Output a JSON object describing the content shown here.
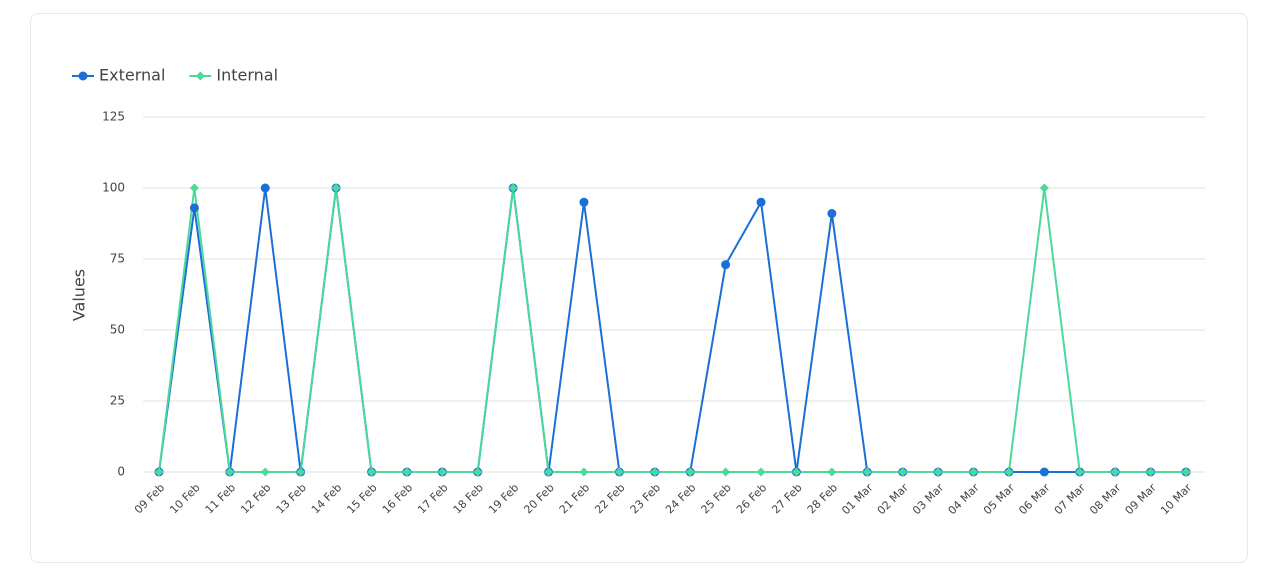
{
  "chart_data": {
    "type": "line",
    "y_label": "Values",
    "categories": [
      "09 Feb",
      "10 Feb",
      "11 Feb",
      "12 Feb",
      "13 Feb",
      "14 Feb",
      "15 Feb",
      "16 Feb",
      "17 Feb",
      "18 Feb",
      "19 Feb",
      "20 Feb",
      "21 Feb",
      "22 Feb",
      "23 Feb",
      "24 Feb",
      "25 Feb",
      "26 Feb",
      "27 Feb",
      "28 Feb",
      "01 Mar",
      "02 Mar",
      "03 Mar",
      "04 Mar",
      "05 Mar",
      "06 Mar",
      "07 Mar",
      "08 Mar",
      "09 Mar",
      "10 Mar"
    ],
    "series": [
      {
        "name": "External",
        "color": "#1a6fd8",
        "marker": "circle",
        "values": [
          0,
          93,
          0,
          100,
          0,
          100,
          0,
          0,
          0,
          0,
          100,
          0,
          95,
          0,
          0,
          0,
          73,
          95,
          0,
          91,
          0,
          0,
          0,
          0,
          0,
          0,
          0,
          0,
          0,
          0
        ]
      },
      {
        "name": "Internal",
        "color": "#4cd99a",
        "marker": "diamond",
        "values": [
          0,
          100,
          0,
          0,
          0,
          100,
          0,
          0,
          0,
          0,
          100,
          0,
          0,
          0,
          0,
          0,
          0,
          0,
          0,
          0,
          0,
          0,
          0,
          0,
          0,
          100,
          0,
          0,
          0,
          0
        ]
      }
    ],
    "ylim": [
      0,
      125
    ],
    "yticks": [
      0,
      25,
      50,
      75,
      100,
      125
    ],
    "grid": true,
    "legend": "top-left"
  }
}
